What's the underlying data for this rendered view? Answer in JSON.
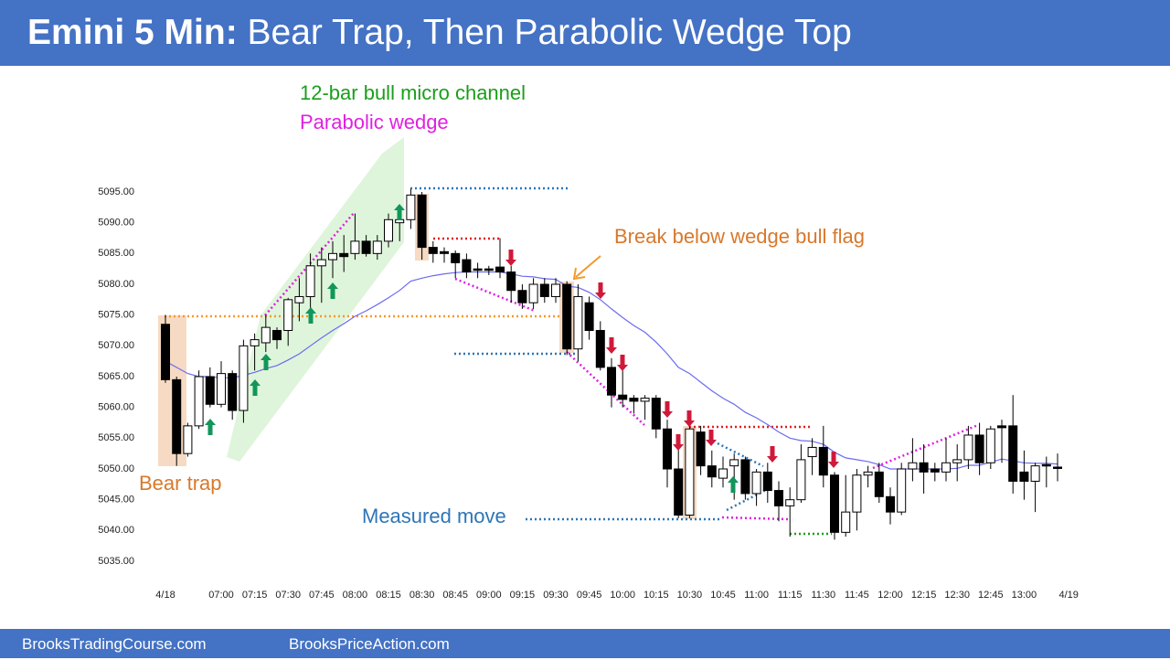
{
  "header": {
    "title_bold": "Emini 5 Min:",
    "title": "Bear Trap, Then Parabolic Wedge Top"
  },
  "footer": {
    "left": "BrooksTradingCourse.com",
    "right": "BrooksPriceAction.com"
  },
  "chart_data": {
    "type": "candlestick",
    "up_color": "#ffffff",
    "down_color": "#000000",
    "outline_color": "#000000",
    "categories": [
      "4/18",
      null,
      null,
      null,
      null,
      "07:00",
      null,
      null,
      "07:15",
      null,
      null,
      "07:30",
      null,
      null,
      "07:45",
      null,
      null,
      "08:00",
      null,
      null,
      "08:15",
      null,
      null,
      "08:30",
      null,
      null,
      "08:45",
      null,
      null,
      "09:00",
      null,
      null,
      "09:15",
      null,
      null,
      "09:30",
      null,
      null,
      "09:45",
      null,
      null,
      "10:00",
      null,
      null,
      "10:15",
      null,
      null,
      "10:30",
      null,
      null,
      "10:45",
      null,
      null,
      "11:00",
      null,
      null,
      "11:15",
      null,
      null,
      "11:30",
      null,
      null,
      "11:45",
      null,
      null,
      "12:00",
      null,
      null,
      "12:15",
      null,
      null,
      "12:30",
      null,
      null,
      "12:45",
      null,
      null,
      "13:00",
      null,
      null,
      null,
      "4/19"
    ],
    "open": [
      5073.5,
      5064.5,
      5052.5,
      5057,
      5065,
      5060.5,
      5065.5,
      5059.5,
      5070,
      5070.5,
      5072.5,
      5072.5,
      5077,
      5078,
      5083,
      5084,
      5085,
      5085,
      5087,
      5085,
      5087,
      5090,
      5090.5,
      5094.5,
      5086,
      5085.3,
      5085,
      5084,
      5082.5,
      5082.5,
      5082.8,
      5082,
      5079,
      5077,
      5080,
      5078,
      5080,
      5069.5,
      5077,
      5072.5,
      5066.5,
      5062,
      5061.5,
      5061,
      5061.5,
      5056.5,
      5050,
      5042.5,
      5056,
      5050.5,
      5048.5,
      5050.5,
      5051.5,
      5046,
      5049.5,
      5046.5,
      5044,
      5045,
      5052,
      5053.5,
      5049,
      5039.7,
      5043,
      5049,
      5049.5,
      5045.5,
      5043,
      5050,
      5051,
      5050,
      5049.5,
      5051,
      5051.5,
      5055.5,
      5051,
      5057,
      5057,
      5049.5,
      5048,
      5050.7,
      5050.3,
      null
    ],
    "high": [
      5075,
      5065,
      5057.5,
      5066,
      5066.5,
      5067.5,
      5066,
      5071,
      5072,
      5075,
      5073,
      5077.8,
      5081,
      5085,
      5086,
      5087,
      5088,
      5091.5,
      5088,
      5088,
      5091.5,
      5092,
      5095.5,
      5095,
      5087,
      5086,
      5085.5,
      5085,
      5083.5,
      5083,
      5087.5,
      5083,
      5080,
      5081,
      5081,
      5081,
      5080.5,
      5080,
      5078,
      5074,
      5068,
      5068,
      5062,
      5062,
      5062,
      5058,
      5055,
      5057,
      5057,
      5053,
      5052,
      5052.5,
      5052,
      5050,
      5051,
      5048,
      5047,
      5054,
      5055,
      5057,
      5049.5,
      5049,
      5050,
      5050.5,
      5051,
      5047,
      5051,
      5055,
      5054,
      5051,
      5055,
      5054,
      5057,
      5057.5,
      5057,
      5058,
      5062,
      5053,
      5051,
      5052,
      5052.5,
      null
    ],
    "low": [
      5064,
      5050.5,
      5052,
      5056.5,
      5060,
      5060,
      5058,
      5057.5,
      5066,
      5069,
      5069.5,
      5070,
      5074,
      5076,
      5077,
      5081,
      5082,
      5084,
      5084.5,
      5084,
      5086,
      5087,
      5089,
      5084,
      5083.5,
      5083.5,
      5081,
      5081,
      5081,
      5081.5,
      5081,
      5077,
      5076,
      5076,
      5077,
      5077,
      5068.5,
      5067.5,
      5071,
      5066,
      5060,
      5060,
      5059,
      5058,
      5055,
      5047,
      5042,
      5042,
      5049,
      5047,
      5047,
      5045,
      5045,
      5044,
      5044.5,
      5041.5,
      5039,
      5044.5,
      5049,
      5047,
      5038.5,
      5039,
      5040,
      5047,
      5044.5,
      5041,
      5042.5,
      5048,
      5046,
      5048,
      5048,
      5048,
      5050,
      5049,
      5050,
      5051,
      5046,
      5045,
      5043,
      5047,
      5048,
      null
    ],
    "close": [
      5064.5,
      5052.5,
      5057,
      5065,
      5060.5,
      5065.5,
      5059.5,
      5070,
      5071,
      5073,
      5071,
      5077.5,
      5078,
      5083,
      5084,
      5085,
      5084.5,
      5087,
      5085,
      5087,
      5090.5,
      5090.5,
      5094.5,
      5086,
      5085,
      5085,
      5083.5,
      5082,
      5082.3,
      5082.3,
      5082,
      5079,
      5077,
      5080,
      5078,
      5080,
      5069.5,
      5078,
      5072.5,
      5066.5,
      5062,
      5061.3,
      5061,
      5061.5,
      5056.5,
      5050,
      5042.5,
      5056.5,
      5050.5,
      5048.7,
      5050,
      5051.5,
      5046,
      5049.5,
      5046.5,
      5044,
      5045,
      5051.5,
      5053.5,
      5049,
      5039.7,
      5043,
      5049,
      5049.5,
      5045.5,
      5043,
      5050,
      5051,
      5049.5,
      5049.5,
      5051,
      5051.5,
      5055.5,
      5051,
      5056.5,
      5056.7,
      5048,
      5048,
      5050.5,
      5050.5,
      5050.2,
      null
    ],
    "moving_average": {
      "color": "#6b6bf0",
      "values": [
        5067.5,
        5066.5,
        5065.5,
        5065,
        5065,
        5064.8,
        5064.8,
        5065.2,
        5065.7,
        5066.3,
        5066.8,
        5067.7,
        5068.7,
        5070,
        5071.3,
        5072.5,
        5073.6,
        5074.8,
        5075.7,
        5076.7,
        5077.8,
        5079,
        5080.5,
        5081,
        5081.4,
        5081.7,
        5081.9,
        5082,
        5082,
        5082,
        5082,
        5081.7,
        5081.3,
        5081.2,
        5080.9,
        5080.8,
        5079.7,
        5079.5,
        5078.7,
        5077.5,
        5076,
        5074.6,
        5073.3,
        5072.2,
        5070.6,
        5068.7,
        5066.5,
        5065.5,
        5064.1,
        5062.7,
        5061.5,
        5060.5,
        5059.2,
        5058.3,
        5057.2,
        5056,
        5055,
        5054.6,
        5054.5,
        5054,
        5052.7,
        5051.8,
        5051.5,
        5051.2,
        5050.7,
        5050,
        5050,
        5050,
        5050,
        5050,
        5050,
        5050.1,
        5050.6,
        5050.6,
        5051.1,
        5051.6,
        5051.3,
        5051,
        5050.9,
        5050.9,
        5050.8,
        null
      ]
    },
    "ylim": [
      5035,
      5095
    ],
    "yticks": [
      {
        "value": 5035,
        "label": "5035.00"
      },
      {
        "value": 5040,
        "label": "5040.00"
      },
      {
        "value": 5045,
        "label": "5045.00"
      },
      {
        "value": 5050,
        "label": "5050.00"
      },
      {
        "value": 5055,
        "label": "5055.00"
      },
      {
        "value": 5060,
        "label": "5060.00"
      },
      {
        "value": 5065,
        "label": "5065.00"
      },
      {
        "value": 5070,
        "label": "5070.00"
      },
      {
        "value": 5075,
        "label": "5075.00"
      },
      {
        "value": 5080,
        "label": "5080.00"
      },
      {
        "value": 5085,
        "label": "5085.00"
      },
      {
        "value": 5090,
        "label": "5090.00"
      },
      {
        "value": 5095,
        "label": "5095.00"
      }
    ],
    "grid": false,
    "annotations": [
      {
        "text": "12-bar bull micro channel",
        "color": "#1a9e1a"
      },
      {
        "text": "Parabolic wedge",
        "color": "#e020e0"
      },
      {
        "text": "Break below wedge bull flag",
        "color": "#d9782a"
      },
      {
        "text": "Bear trap",
        "color": "#d9782a"
      },
      {
        "text": "Measured move",
        "color": "#2e75b6"
      }
    ]
  }
}
